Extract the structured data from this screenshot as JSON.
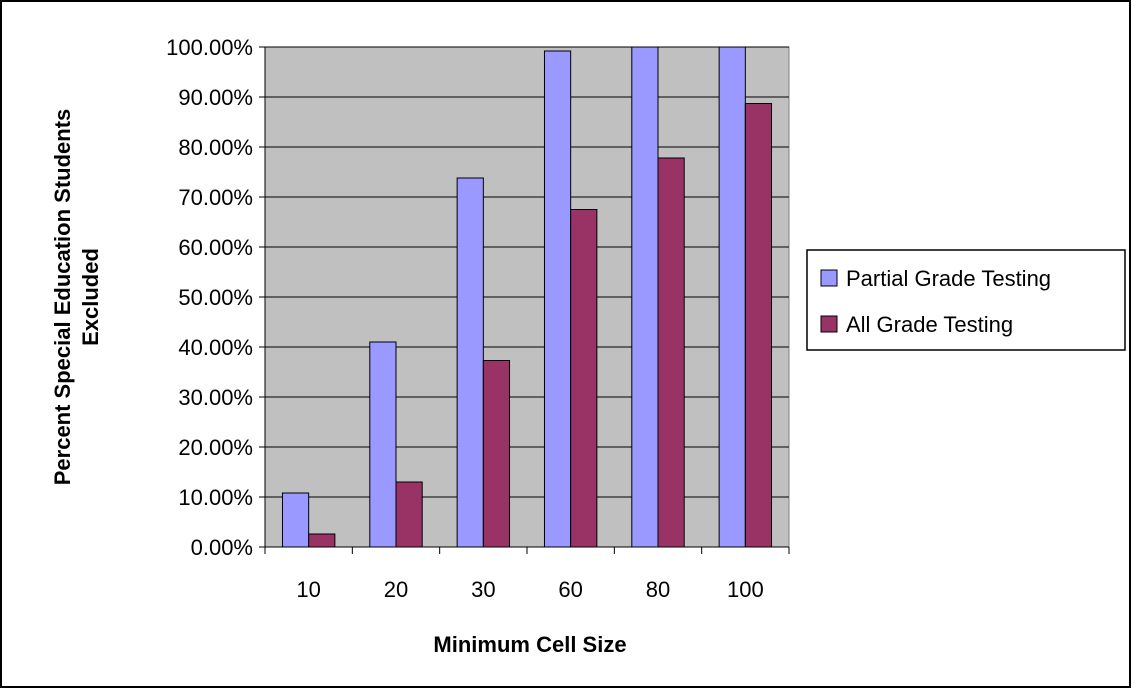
{
  "chart_data": {
    "type": "bar",
    "title": "",
    "xlabel": "Minimum Cell Size",
    "ylabel": "Percent Special Education Students Excluded",
    "ylabel_lines": [
      "Percent Special Education Students",
      "Excluded"
    ],
    "categories": [
      "10",
      "20",
      "30",
      "60",
      "80",
      "100"
    ],
    "series": [
      {
        "name": "Partial Grade Testing",
        "color": "#9999ff",
        "values": [
          10.8,
          41.0,
          73.8,
          99.2,
          100.0,
          100.0
        ]
      },
      {
        "name": "All Grade Testing",
        "color": "#993366",
        "values": [
          2.6,
          13.0,
          37.3,
          67.5,
          77.8,
          88.7
        ]
      }
    ],
    "ylim": [
      0,
      100
    ],
    "yticks": [
      0,
      10,
      20,
      30,
      40,
      50,
      60,
      70,
      80,
      90,
      100
    ],
    "ytick_labels": [
      "0.00%",
      "10.00%",
      "20.00%",
      "30.00%",
      "40.00%",
      "50.00%",
      "60.00%",
      "70.00%",
      "80.00%",
      "90.00%",
      "100.00%"
    ],
    "grid": true,
    "plot_background": "#c0c0c0",
    "legend_position": "right"
  }
}
